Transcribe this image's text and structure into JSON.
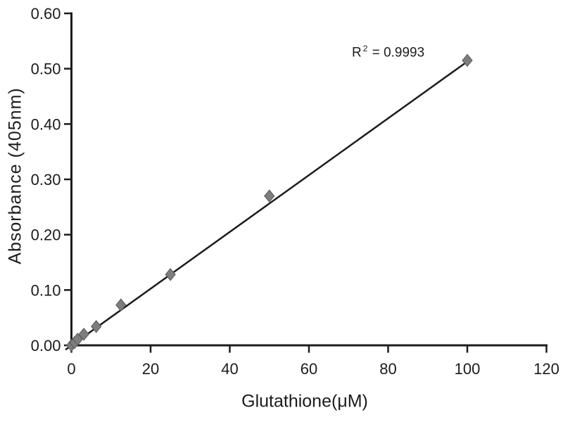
{
  "figure": {
    "background": "#ffffff",
    "colors": {
      "axis": "#1c1c1c",
      "text": "#1c1c1c",
      "trendline": "#1c1c1c",
      "marker_fill": "#7d7d7d",
      "marker_stroke": "#5a5a5a"
    }
  },
  "chart_data": {
    "type": "scatter",
    "title": "",
    "xlabel": "Glutathione(μM)",
    "ylabel": "Absorbance (405nm)",
    "xlim": [
      0,
      120
    ],
    "ylim": [
      0,
      0.6
    ],
    "x_ticks": [
      "0",
      "20",
      "40",
      "60",
      "80",
      "100",
      "120"
    ],
    "y_ticks": [
      "0.00",
      "0.10",
      "0.20",
      "0.30",
      "0.40",
      "0.50",
      "0.60"
    ],
    "grid": false,
    "legend": false,
    "series": [
      {
        "name": "glutathione-standards",
        "marker": "diamond",
        "x": [
          0,
          0.78,
          1.56,
          3.13,
          6.25,
          12.5,
          25,
          50,
          100
        ],
        "y": [
          0.0,
          0.005,
          0.011,
          0.02,
          0.034,
          0.073,
          0.128,
          0.27,
          0.515
        ]
      }
    ],
    "trendline": {
      "x_start": -1.5,
      "y_start": -0.008,
      "x_end": 100.6,
      "y_end": 0.516
    },
    "annotation": {
      "base": "R",
      "sup": "2",
      "rest": " = 0.9993"
    }
  }
}
